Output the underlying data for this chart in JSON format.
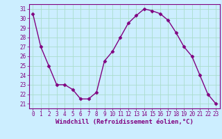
{
  "x": [
    0,
    1,
    2,
    3,
    4,
    5,
    6,
    7,
    8,
    9,
    10,
    11,
    12,
    13,
    14,
    15,
    16,
    17,
    18,
    19,
    20,
    21,
    22,
    23
  ],
  "y": [
    30.5,
    27.0,
    25.0,
    23.0,
    23.0,
    22.5,
    21.5,
    21.5,
    22.2,
    25.5,
    26.5,
    28.0,
    29.5,
    30.3,
    31.0,
    30.8,
    30.5,
    29.8,
    28.5,
    27.0,
    26.0,
    24.0,
    22.0,
    21.0
  ],
  "xlabel": "Windchill (Refroidissement éolien,°C)",
  "ylim": [
    20.5,
    31.5
  ],
  "xlim": [
    -0.5,
    23.5
  ],
  "yticks": [
    21,
    22,
    23,
    24,
    25,
    26,
    27,
    28,
    29,
    30,
    31
  ],
  "xticks": [
    0,
    1,
    2,
    3,
    4,
    5,
    6,
    7,
    8,
    9,
    10,
    11,
    12,
    13,
    14,
    15,
    16,
    17,
    18,
    19,
    20,
    21,
    22,
    23
  ],
  "line_color": "#800080",
  "bg_color": "#cceeff",
  "grid_color": "#aaddcc",
  "marker": "D",
  "marker_size": 2.5,
  "line_width": 1.0,
  "tick_fontsize": 5.5,
  "label_fontsize": 6.5
}
